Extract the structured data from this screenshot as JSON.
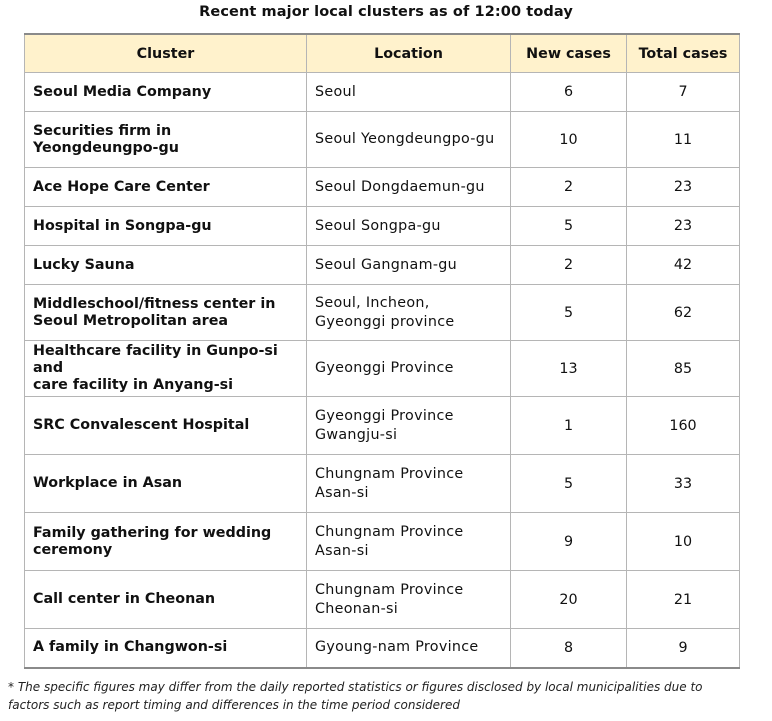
{
  "title": "Recent major local clusters as of 12:00 today",
  "columns": [
    "Cluster",
    "Location",
    "New cases",
    "Total cases"
  ],
  "rows": [
    {
      "cluster": "Seoul Media Company",
      "location": "Seoul",
      "new_cases": "6",
      "total_cases": "7"
    },
    {
      "cluster": "Securities firm in\nYeongdeungpo-gu",
      "location": "Seoul Yeongdeungpo-gu",
      "new_cases": "10",
      "total_cases": "11"
    },
    {
      "cluster": "Ace Hope Care Center",
      "location": "Seoul Dongdaemun-gu",
      "new_cases": "2",
      "total_cases": "23"
    },
    {
      "cluster": "Hospital in Songpa-gu",
      "location": "Seoul Songpa-gu",
      "new_cases": "5",
      "total_cases": "23"
    },
    {
      "cluster": "Lucky Sauna",
      "location": "Seoul Gangnam-gu",
      "new_cases": "2",
      "total_cases": "42"
    },
    {
      "cluster": "Middleschool/fitness center in\nSeoul Metropolitan area",
      "location": "Seoul, Incheon,\nGyeonggi province",
      "new_cases": "5",
      "total_cases": "62"
    },
    {
      "cluster": "Healthcare facility in Gunpo-si and\ncare facility in Anyang-si",
      "location": "Gyeonggi Province",
      "new_cases": "13",
      "total_cases": "85"
    },
    {
      "cluster": "SRC Convalescent Hospital",
      "location": "Gyeonggi Province\nGwangju-si",
      "new_cases": "1",
      "total_cases": "160"
    },
    {
      "cluster": "Workplace in Asan",
      "location": "Chungnam Province\nAsan-si",
      "new_cases": "5",
      "total_cases": "33"
    },
    {
      "cluster": "Family gathering for wedding\nceremony",
      "location": "Chungnam Province\nAsan-si",
      "new_cases": "9",
      "total_cases": "10"
    },
    {
      "cluster": "Call center in Cheonan",
      "location": "Chungnam Province\nCheonan-si",
      "new_cases": "20",
      "total_cases": "21"
    },
    {
      "cluster": "A family in Changwon-si",
      "location": "Gyoung-nam Province",
      "new_cases": "8",
      "total_cases": "9"
    }
  ],
  "footnote": "* The specific figures may differ from the daily reported statistics or figures disclosed by local municipalities due to\nfactors such as report timing and differences in the time period considered"
}
